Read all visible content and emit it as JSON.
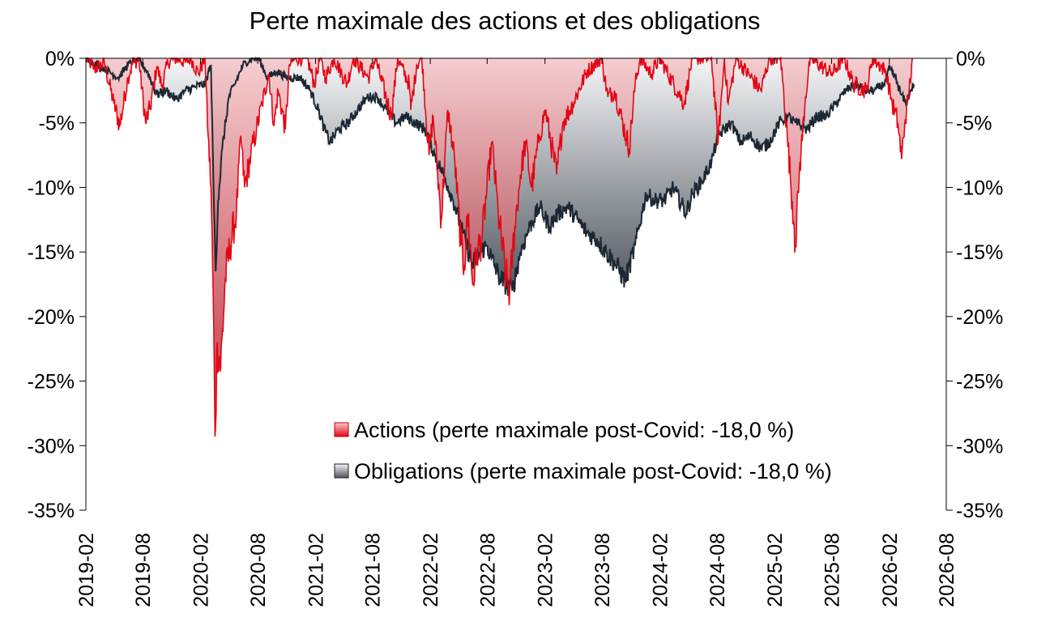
{
  "chart_data": {
    "type": "area",
    "title": "Perte maximale des actions et des obligations",
    "xlabel": "",
    "ylabel": "",
    "x_ticks": [
      "2019-02",
      "2019-08",
      "2020-02",
      "2020-08",
      "2021-02",
      "2021-08",
      "2022-02",
      "2022-08",
      "2023-02",
      "2023-08",
      "2024-02",
      "2024-08",
      "2025-02",
      "2025-08",
      "2026-02",
      "2026-08"
    ],
    "y_ticks": [
      "0%",
      "-5%",
      "-10%",
      "-15%",
      "-20%",
      "-25%",
      "-30%",
      "-35%"
    ],
    "ylim": [
      -35,
      0
    ],
    "xlim": [
      "2019-02",
      "2026-08"
    ],
    "grid": false,
    "legend_position": "bottom-right",
    "series": [
      {
        "name": "Actions (perte maximale post-Covid: -18,0 %)",
        "color": "#e30613",
        "points": [
          [
            "2019-02-01",
            0
          ],
          [
            "2019-03-01",
            -0.8
          ],
          [
            "2019-04-01",
            -0.4
          ],
          [
            "2019-05-01",
            -3.5
          ],
          [
            "2019-05-20",
            -5.2
          ],
          [
            "2019-06-15",
            -1.5
          ],
          [
            "2019-07-01",
            -0.3
          ],
          [
            "2019-07-20",
            -0.2
          ],
          [
            "2019-08-10",
            -5
          ],
          [
            "2019-08-25",
            -3.8
          ],
          [
            "2019-09-15",
            -0.6
          ],
          [
            "2019-10-01",
            -2.2
          ],
          [
            "2019-10-20",
            -0.3
          ],
          [
            "2019-11-15",
            0
          ],
          [
            "2019-12-15",
            -0.3
          ],
          [
            "2020-01-01",
            0
          ],
          [
            "2020-01-25",
            -1.2
          ],
          [
            "2020-02-15",
            0
          ],
          [
            "2020-02-25",
            -6
          ],
          [
            "2020-03-05",
            -10
          ],
          [
            "2020-03-12",
            -18
          ],
          [
            "2020-03-18",
            -29.3
          ],
          [
            "2020-03-25",
            -22
          ],
          [
            "2020-04-05",
            -24
          ],
          [
            "2020-04-20",
            -17
          ],
          [
            "2020-05-05",
            -14.5
          ],
          [
            "2020-05-25",
            -12
          ],
          [
            "2020-06-08",
            -6
          ],
          [
            "2020-06-20",
            -10
          ],
          [
            "2020-07-10",
            -7.5
          ],
          [
            "2020-07-28",
            -5.5
          ],
          [
            "2020-08-15",
            -3.5
          ],
          [
            "2020-09-05",
            -1.2
          ],
          [
            "2020-09-22",
            -5.2
          ],
          [
            "2020-10-05",
            -2.5
          ],
          [
            "2020-10-28",
            -5.5
          ],
          [
            "2020-11-10",
            -0.5
          ],
          [
            "2020-12-01",
            0
          ],
          [
            "2021-01-05",
            0
          ],
          [
            "2021-01-28",
            -2
          ],
          [
            "2021-02-15",
            0
          ],
          [
            "2021-03-05",
            -1.5
          ],
          [
            "2021-04-01",
            0
          ],
          [
            "2021-05-12",
            -2
          ],
          [
            "2021-06-01",
            0
          ],
          [
            "2021-07-19",
            -1.5
          ],
          [
            "2021-08-10",
            0
          ],
          [
            "2021-09-30",
            -4.5
          ],
          [
            "2021-10-20",
            0
          ],
          [
            "2021-11-26",
            -2
          ],
          [
            "2021-12-01",
            -4
          ],
          [
            "2021-12-20",
            -0.5
          ],
          [
            "2022-01-05",
            0
          ],
          [
            "2022-01-28",
            -7.5
          ],
          [
            "2022-02-10",
            -4.5
          ],
          [
            "2022-03-08",
            -12.5
          ],
          [
            "2022-03-29",
            -4
          ],
          [
            "2022-04-20",
            -8
          ],
          [
            "2022-05-10",
            -14.5
          ],
          [
            "2022-05-20",
            -16
          ],
          [
            "2022-06-01",
            -12
          ],
          [
            "2022-06-16",
            -17.5
          ],
          [
            "2022-06-30",
            -15
          ],
          [
            "2022-07-15",
            -14
          ],
          [
            "2022-08-16",
            -6.5
          ],
          [
            "2022-09-05",
            -12
          ],
          [
            "2022-09-30",
            -17
          ],
          [
            "2022-10-12",
            -18
          ],
          [
            "2022-10-28",
            -13
          ],
          [
            "2022-11-15",
            -9
          ],
          [
            "2022-12-01",
            -6.5
          ],
          [
            "2022-12-20",
            -10
          ],
          [
            "2023-01-15",
            -6
          ],
          [
            "2023-02-02",
            -4
          ],
          [
            "2023-03-10",
            -9
          ],
          [
            "2023-03-30",
            -5
          ],
          [
            "2023-05-01",
            -3.5
          ],
          [
            "2023-06-15",
            -1
          ],
          [
            "2023-07-31",
            0
          ],
          [
            "2023-08-20",
            -3
          ],
          [
            "2023-09-10",
            -2.5
          ],
          [
            "2023-10-27",
            -7
          ],
          [
            "2023-11-15",
            -2
          ],
          [
            "2023-12-01",
            0
          ],
          [
            "2024-01-05",
            -1.2
          ],
          [
            "2024-02-01",
            0
          ],
          [
            "2024-04-19",
            -3.5
          ],
          [
            "2024-05-15",
            0
          ],
          [
            "2024-07-15",
            0
          ],
          [
            "2024-08-05",
            -6.5
          ],
          [
            "2024-08-25",
            0
          ],
          [
            "2024-09-06",
            -3.5
          ],
          [
            "2024-10-01",
            0
          ],
          [
            "2024-12-19",
            -2.5
          ],
          [
            "2025-01-15",
            0
          ],
          [
            "2025-02-20",
            0
          ],
          [
            "2025-03-13",
            -6
          ],
          [
            "2025-04-04",
            -13
          ],
          [
            "2025-04-08",
            -14.5
          ],
          [
            "2025-04-20",
            -9
          ],
          [
            "2025-05-10",
            -3
          ],
          [
            "2025-05-25",
            0
          ],
          [
            "2025-08-01",
            -1.2
          ],
          [
            "2025-09-10",
            0
          ],
          [
            "2025-10-10",
            -2
          ],
          [
            "2025-11-20",
            -2.5
          ],
          [
            "2025-12-10",
            0
          ],
          [
            "2026-01-20",
            -1
          ],
          [
            "2026-02-10",
            -3.5
          ],
          [
            "2026-02-28",
            -5
          ],
          [
            "2026-03-12",
            -7.8
          ],
          [
            "2026-03-22",
            -5
          ],
          [
            "2026-04-05",
            -2.5
          ],
          [
            "2026-04-15",
            0
          ]
        ]
      },
      {
        "name": "Obligations (perte maximale post-Covid: -18,0 %)",
        "color": "#1c2833",
        "points": [
          [
            "2019-02-01",
            0
          ],
          [
            "2019-04-01",
            -0.8
          ],
          [
            "2019-05-15",
            -1.5
          ],
          [
            "2019-06-15",
            -0.5
          ],
          [
            "2019-07-15",
            0
          ],
          [
            "2019-08-15",
            -1
          ],
          [
            "2019-09-15",
            -2.8
          ],
          [
            "2019-10-15",
            -2.5
          ],
          [
            "2019-11-15",
            -3.2
          ],
          [
            "2019-12-15",
            -2.5
          ],
          [
            "2020-01-15",
            -2.2
          ],
          [
            "2020-02-15",
            -2
          ],
          [
            "2020-03-05",
            -0.5
          ],
          [
            "2020-03-15",
            -12
          ],
          [
            "2020-03-20",
            -16.5
          ],
          [
            "2020-03-28",
            -11
          ],
          [
            "2020-04-10",
            -7
          ],
          [
            "2020-05-01",
            -3
          ],
          [
            "2020-05-20",
            -2
          ],
          [
            "2020-06-15",
            -0.5
          ],
          [
            "2020-07-15",
            0
          ],
          [
            "2020-08-04",
            0
          ],
          [
            "2020-09-01",
            -1.5
          ],
          [
            "2020-10-01",
            -1
          ],
          [
            "2020-11-01",
            -1.5
          ],
          [
            "2020-12-15",
            -1.5
          ],
          [
            "2021-01-15",
            -2.5
          ],
          [
            "2021-02-10",
            -4
          ],
          [
            "2021-03-01",
            -5.5
          ],
          [
            "2021-03-20",
            -6.5
          ],
          [
            "2021-04-15",
            -5.5
          ],
          [
            "2021-05-15",
            -5
          ],
          [
            "2021-06-15",
            -4
          ],
          [
            "2021-07-15",
            -3
          ],
          [
            "2021-08-15",
            -3
          ],
          [
            "2021-09-15",
            -4
          ],
          [
            "2021-10-15",
            -5
          ],
          [
            "2021-11-15",
            -4.5
          ],
          [
            "2021-12-15",
            -5
          ],
          [
            "2022-01-15",
            -5.5
          ],
          [
            "2022-02-15",
            -7.5
          ],
          [
            "2022-03-15",
            -9
          ],
          [
            "2022-04-15",
            -11
          ],
          [
            "2022-05-15",
            -13.5
          ],
          [
            "2022-06-15",
            -16
          ],
          [
            "2022-07-10",
            -15
          ],
          [
            "2022-07-31",
            -14.5
          ],
          [
            "2022-08-15",
            -15.5
          ],
          [
            "2022-09-10",
            -17
          ],
          [
            "2022-10-20",
            -18
          ],
          [
            "2022-11-15",
            -15
          ],
          [
            "2022-12-15",
            -13
          ],
          [
            "2023-01-15",
            -11.5
          ],
          [
            "2023-02-15",
            -13
          ],
          [
            "2023-03-15",
            -12
          ],
          [
            "2023-04-15",
            -11.5
          ],
          [
            "2023-05-15",
            -12.5
          ],
          [
            "2023-06-15",
            -13.5
          ],
          [
            "2023-07-15",
            -14
          ],
          [
            "2023-08-15",
            -15
          ],
          [
            "2023-09-15",
            -16
          ],
          [
            "2023-10-15",
            -17.2
          ],
          [
            "2023-11-15",
            -14.5
          ],
          [
            "2023-12-20",
            -10.5
          ],
          [
            "2024-01-15",
            -11
          ],
          [
            "2024-02-15",
            -11
          ],
          [
            "2024-03-15",
            -10
          ],
          [
            "2024-04-25",
            -12
          ],
          [
            "2024-05-15",
            -10.5
          ],
          [
            "2024-06-15",
            -9.5
          ],
          [
            "2024-07-15",
            -8
          ],
          [
            "2024-08-05",
            -6
          ],
          [
            "2024-09-15",
            -5
          ],
          [
            "2024-10-15",
            -6.5
          ],
          [
            "2024-11-15",
            -6
          ],
          [
            "2024-12-20",
            -7
          ],
          [
            "2025-01-15",
            -6.5
          ],
          [
            "2025-02-15",
            -5
          ],
          [
            "2025-03-15",
            -4.5
          ],
          [
            "2025-04-08",
            -5
          ],
          [
            "2025-05-15",
            -5.5
          ],
          [
            "2025-06-15",
            -4.5
          ],
          [
            "2025-07-15",
            -4.5
          ],
          [
            "2025-08-15",
            -3.5
          ],
          [
            "2025-09-15",
            -2.5
          ],
          [
            "2025-10-15",
            -2
          ],
          [
            "2025-11-15",
            -2.5
          ],
          [
            "2025-12-15",
            -2.5
          ],
          [
            "2026-01-15",
            -2
          ],
          [
            "2026-02-01",
            -0.8
          ],
          [
            "2026-02-20",
            -1.5
          ],
          [
            "2026-03-10",
            -2.8
          ],
          [
            "2026-03-25",
            -3.5
          ],
          [
            "2026-04-10",
            -2.5
          ],
          [
            "2026-04-20",
            -2
          ]
        ]
      }
    ]
  }
}
